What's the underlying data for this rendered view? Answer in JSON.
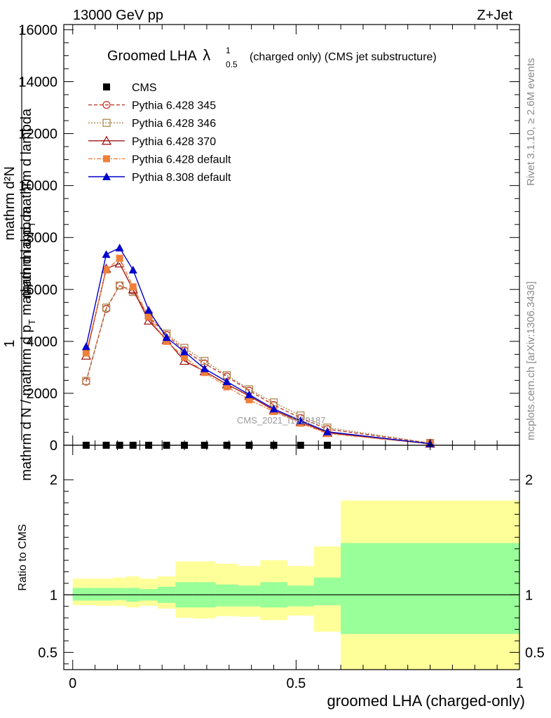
{
  "header": {
    "left": "13000 GeV pp",
    "right": "Z+Jet"
  },
  "side_labels": {
    "rivet": "Rivet 3.1.10, ≥ 2.6M events",
    "mcplots": "mcplots.cern.ch [arXiv:1306.3436]"
  },
  "watermark": "CMS_2021_I1920187",
  "chart_data": [
    {
      "type": "line",
      "title_main": "Groomed LHA",
      "title_lambda": "λ",
      "title_sup": "1",
      "title_sub": "0.5",
      "title_rest": "(charged only) (CMS jet substructure)",
      "ylabel_top": "mathrm d²N",
      "ylabel_mid": "mathrm d p",
      "ylabel_mid_sub": "T",
      "ylabel_mid_rest": " mathrm d lambda",
      "ylabel_one": "1",
      "ylabel_bottom": "mathrm d N / mathrm d p",
      "ylabel_bottom_sub": "T",
      "ylabel_bottom_rest": " mathrm d lambda",
      "xlim": [
        -0.02,
        1.0
      ],
      "ylim": [
        0,
        16200
      ],
      "yticks": [
        0,
        2000,
        4000,
        6000,
        8000,
        10000,
        12000,
        14000,
        16000
      ],
      "ytick_labels": [
        "0",
        "2000",
        "4000",
        "6000",
        "8000",
        "10000",
        "12000",
        "14000",
        "16000"
      ],
      "bin_edges": [
        0.0,
        0.05,
        0.09,
        0.12,
        0.15,
        0.19,
        0.23,
        0.27,
        0.32,
        0.37,
        0.42,
        0.48,
        0.54,
        0.6,
        1.0
      ],
      "x": [
        0.03,
        0.075,
        0.105,
        0.135,
        0.17,
        0.21,
        0.25,
        0.295,
        0.345,
        0.395,
        0.45,
        0.51,
        0.57,
        0.8
      ],
      "series": [
        {
          "name": "CMS",
          "values": [
            0,
            0,
            0,
            0,
            0,
            0,
            0,
            0,
            0,
            0,
            0,
            0,
            0,
            null
          ],
          "color": "#000000",
          "marker": "filled-square",
          "dash": ""
        },
        {
          "name": "Pythia 6.428 345",
          "values": [
            2450,
            5250,
            6150,
            5950,
            4950,
            4250,
            3650,
            3150,
            2650,
            2100,
            1550,
            1050,
            620,
            80
          ],
          "color": "#c0392b",
          "marker": "open-circle",
          "dash": "5,3"
        },
        {
          "name": "Pythia 6.428 346",
          "values": [
            2480,
            5300,
            6150,
            5900,
            5000,
            4300,
            3750,
            3250,
            2700,
            2150,
            1650,
            1150,
            680,
            90
          ],
          "color": "#b08850",
          "marker": "open-square",
          "dash": "2,2"
        },
        {
          "name": "Pythia 6.428 370",
          "values": [
            3450,
            6800,
            7000,
            6000,
            4800,
            4050,
            3250,
            2850,
            2350,
            1900,
            1350,
            900,
            480,
            60
          ],
          "color": "#a01818",
          "marker": "open-triangle",
          "dash": ""
        },
        {
          "name": "Pythia 6.428 default",
          "values": [
            3550,
            6750,
            7200,
            6100,
            4950,
            4000,
            3400,
            2800,
            2250,
            1750,
            1300,
            850,
            450,
            50
          ],
          "color": "#f07f3a",
          "marker": "filled-square",
          "dash": "6,2,2,2"
        },
        {
          "name": "Pythia 8.308 default",
          "values": [
            3800,
            7350,
            7600,
            6750,
            5200,
            4150,
            3600,
            2950,
            2450,
            1950,
            1400,
            950,
            520,
            60
          ],
          "color": "#0000cc",
          "marker": "filled-triangle",
          "dash": ""
        }
      ],
      "legend_placement": "top-left"
    },
    {
      "type": "area",
      "ylabel": "Ratio to CMS",
      "xlabel": "groomed LHA (charged-only)",
      "xlim": [
        -0.02,
        1.0
      ],
      "ylim": [
        0.35,
        2.3
      ],
      "yticks": [
        0.5,
        1,
        2
      ],
      "ytick_labels": [
        "0.5",
        "1",
        "2"
      ],
      "xticks": [
        0,
        0.5,
        1
      ],
      "xtick_labels": [
        "0",
        "0.5",
        "1"
      ],
      "reference_line": 1,
      "bin_edges": [
        0.0,
        0.05,
        0.09,
        0.12,
        0.15,
        0.19,
        0.23,
        0.27,
        0.32,
        0.37,
        0.42,
        0.48,
        0.54,
        0.6,
        1.0
      ],
      "stat_band": {
        "color": "#99ff99",
        "lower": [
          0.95,
          0.95,
          0.955,
          0.94,
          0.95,
          0.93,
          0.89,
          0.89,
          0.9,
          0.9,
          0.89,
          0.9,
          0.91,
          0.66
        ],
        "upper": [
          1.06,
          1.06,
          1.06,
          1.06,
          1.05,
          1.07,
          1.11,
          1.11,
          1.09,
          1.08,
          1.11,
          1.08,
          1.15,
          1.45
        ]
      },
      "total_band": {
        "color": "#ffff99",
        "lower": [
          0.91,
          0.905,
          0.905,
          0.89,
          0.905,
          0.88,
          0.8,
          0.795,
          0.815,
          0.81,
          0.78,
          0.82,
          0.68,
          0.35
        ],
        "upper": [
          1.14,
          1.14,
          1.15,
          1.16,
          1.14,
          1.16,
          1.29,
          1.29,
          1.27,
          1.25,
          1.3,
          1.25,
          1.42,
          1.82
        ]
      }
    }
  ]
}
